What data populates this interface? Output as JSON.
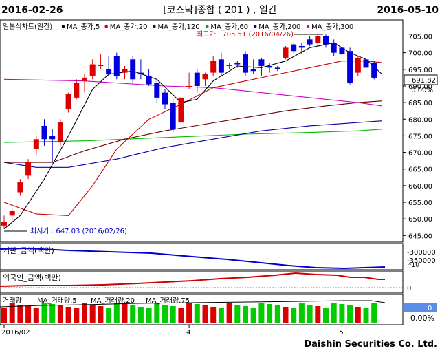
{
  "header": {
    "start_date": "2016-02-26",
    "title": "[코스닥]종합 ( 201 ) , 일간",
    "end_date": "2016-05-10"
  },
  "legend": {
    "chart_name": "일본식차트(일간)",
    "items": [
      {
        "label": "MA_종가,5",
        "color": "#000000"
      },
      {
        "label": "MA_종가,20",
        "color": "#cc0000"
      },
      {
        "label": "MA_종가,120",
        "color": "#660000"
      },
      {
        "label": "MA_종가,60",
        "color": "#00aa00"
      },
      {
        "label": "MA_종가,200",
        "color": "#0000aa"
      },
      {
        "label": "MA_종가,300",
        "color": "#cc00cc"
      }
    ]
  },
  "annotations": {
    "high": "최고가 : 705.51 (2016/04/26)",
    "low": "최저가 : 647.03 (2016/02/26)"
  },
  "price_axis": {
    "last_value": "691.82",
    "change": "0.00%"
  },
  "inst_panel": {
    "label": "기관_금액(백만)",
    "ticks": [
      "-300000",
      "-350000"
    ],
    "unit": "*10"
  },
  "foreign_panel": {
    "label": "외국인_금액(백만)",
    "tick": "0"
  },
  "volume_panel": {
    "label": "거래량",
    "ma5": "MA_거래량,5",
    "ma20": "MA_거래량,20",
    "ma75": "MA_거래량,75",
    "value": "0",
    "change": "0.00%"
  },
  "x_axis": {
    "labels": [
      {
        "text": "2016/02",
        "index": 0
      },
      {
        "text": "4",
        "index": 23
      },
      {
        "text": "5",
        "index": 42
      }
    ]
  },
  "footer": {
    "brand": "Daishin Securities Co. Ltd."
  },
  "chart_data": {
    "type": "candlestick",
    "ylim": [
      643,
      708
    ],
    "yticks": [
      645,
      650,
      655,
      660,
      665,
      670,
      675,
      680,
      685,
      690,
      695,
      700,
      705
    ],
    "candles": [
      {
        "o": 648.0,
        "h": 651.0,
        "l": 647.03,
        "c": 649.0
      },
      {
        "o": 651.0,
        "h": 653.0,
        "l": 649.0,
        "c": 652.5
      },
      {
        "o": 658.0,
        "h": 662.0,
        "l": 657.0,
        "c": 661.0
      },
      {
        "o": 663.0,
        "h": 668.0,
        "l": 662.0,
        "c": 667.0
      },
      {
        "o": 671.0,
        "h": 675.0,
        "l": 669.0,
        "c": 674.0
      },
      {
        "o": 678.0,
        "h": 680.0,
        "l": 672.0,
        "c": 674.0
      },
      {
        "o": 675.0,
        "h": 677.0,
        "l": 667.0,
        "c": 674.0
      },
      {
        "o": 673.0,
        "h": 680.0,
        "l": 672.0,
        "c": 679.0
      },
      {
        "o": 683.0,
        "h": 688.0,
        "l": 682.0,
        "c": 687.5
      },
      {
        "o": 686.5,
        "h": 692.0,
        "l": 686.0,
        "c": 691.0
      },
      {
        "o": 691.5,
        "h": 693.5,
        "l": 688.0,
        "c": 692.5
      },
      {
        "o": 693.0,
        "h": 698.0,
        "l": 692.0,
        "c": 696.5
      },
      {
        "o": 696.0,
        "h": 699.5,
        "l": 695.0,
        "c": 696.3
      },
      {
        "o": 695.0,
        "h": 699.0,
        "l": 693.0,
        "c": 693.5
      },
      {
        "o": 699.0,
        "h": 700.0,
        "l": 692.0,
        "c": 693.0
      },
      {
        "o": 694.0,
        "h": 696.0,
        "l": 692.0,
        "c": 695.0
      },
      {
        "o": 698.0,
        "h": 699.0,
        "l": 691.0,
        "c": 692.0
      },
      {
        "o": 694.0,
        "h": 698.0,
        "l": 692.0,
        "c": 693.5
      },
      {
        "o": 693.0,
        "h": 695.0,
        "l": 690.0,
        "c": 690.5
      },
      {
        "o": 691.0,
        "h": 692.0,
        "l": 685.0,
        "c": 686.5
      },
      {
        "o": 688.0,
        "h": 689.0,
        "l": 683.0,
        "c": 684.5
      },
      {
        "o": 685.0,
        "h": 686.0,
        "l": 676.0,
        "c": 677.0
      },
      {
        "o": 679.0,
        "h": 687.0,
        "l": 678.0,
        "c": 686.5
      },
      {
        "o": 690.0,
        "h": 694.0,
        "l": 689.0,
        "c": 690.0
      },
      {
        "o": 694.0,
        "h": 695.0,
        "l": 688.0,
        "c": 690.0
      },
      {
        "o": 692.0,
        "h": 694.0,
        "l": 690.0,
        "c": 693.5
      },
      {
        "o": 694.0,
        "h": 699.0,
        "l": 693.0,
        "c": 697.5
      },
      {
        "o": 698.0,
        "h": 700.0,
        "l": 693.0,
        "c": 694.0
      },
      {
        "o": 696.0,
        "h": 697.0,
        "l": 695.0,
        "c": 696.3
      },
      {
        "o": 697.0,
        "h": 697.5,
        "l": 695.5,
        "c": 696.5
      },
      {
        "o": 699.5,
        "h": 700.5,
        "l": 693.0,
        "c": 694.0
      },
      {
        "o": 695.0,
        "h": 698.0,
        "l": 693.5,
        "c": 694.5
      },
      {
        "o": 698.0,
        "h": 698.5,
        "l": 693.0,
        "c": 696.0
      },
      {
        "o": 696.0,
        "h": 697.0,
        "l": 694.0,
        "c": 695.5
      },
      {
        "o": 695.5,
        "h": 696.0,
        "l": 694.5,
        "c": 695.0
      },
      {
        "o": 698.5,
        "h": 702.0,
        "l": 698.0,
        "c": 701.5
      },
      {
        "o": 702.5,
        "h": 703.0,
        "l": 700.0,
        "c": 700.5
      },
      {
        "o": 702.0,
        "h": 703.0,
        "l": 699.5,
        "c": 701.5
      },
      {
        "o": 704.0,
        "h": 705.0,
        "l": 702.0,
        "c": 702.5
      },
      {
        "o": 703.0,
        "h": 705.51,
        "l": 702.0,
        "c": 705.0
      },
      {
        "o": 705.0,
        "h": 705.5,
        "l": 701.5,
        "c": 702.5
      },
      {
        "o": 703.0,
        "h": 704.0,
        "l": 699.0,
        "c": 700.0
      },
      {
        "o": 701.5,
        "h": 702.0,
        "l": 698.5,
        "c": 699.5
      },
      {
        "o": 700.5,
        "h": 701.5,
        "l": 690.5,
        "c": 691.0
      },
      {
        "o": 694.0,
        "h": 699.0,
        "l": 693.0,
        "c": 698.5
      },
      {
        "o": 698.0,
        "h": 698.5,
        "l": 693.5,
        "c": 695.5
      },
      {
        "o": 697.0,
        "h": 697.5,
        "l": 692.0,
        "c": 692.5
      }
    ],
    "ma5": [
      [
        0,
        647
      ],
      [
        2,
        651
      ],
      [
        5,
        662
      ],
      [
        8,
        675
      ],
      [
        11,
        689
      ],
      [
        13,
        693.5
      ],
      [
        16,
        694.5
      ],
      [
        19,
        692
      ],
      [
        22,
        685
      ],
      [
        24,
        686
      ],
      [
        26,
        691.5
      ],
      [
        29,
        696
      ],
      [
        32,
        695.5
      ],
      [
        35,
        697.5
      ],
      [
        38,
        701.5
      ],
      [
        41,
        703
      ],
      [
        43,
        700
      ],
      [
        45,
        698
      ],
      [
        47,
        693.5
      ]
    ],
    "ma20": [
      [
        0,
        655
      ],
      [
        4,
        651.5
      ],
      [
        8,
        651
      ],
      [
        11,
        660
      ],
      [
        14,
        671
      ],
      [
        18,
        680
      ],
      [
        22,
        684.5
      ],
      [
        26,
        689.5
      ],
      [
        30,
        691.5
      ],
      [
        34,
        693.5
      ],
      [
        38,
        695.5
      ],
      [
        42,
        697.5
      ],
      [
        45,
        697.5
      ],
      [
        47,
        697
      ]
    ],
    "ma120": [
      [
        0,
        667
      ],
      [
        6,
        667
      ],
      [
        10,
        670.5
      ],
      [
        15,
        674
      ],
      [
        20,
        676.5
      ],
      [
        25,
        678.5
      ],
      [
        30,
        680.5
      ],
      [
        35,
        682.5
      ],
      [
        40,
        684
      ],
      [
        44,
        685
      ],
      [
        47,
        685.5
      ]
    ],
    "ma60": [
      [
        0,
        673
      ],
      [
        10,
        673.5
      ],
      [
        20,
        674.5
      ],
      [
        30,
        675.5
      ],
      [
        38,
        676
      ],
      [
        44,
        676.5
      ],
      [
        47,
        677
      ]
    ],
    "ma200": [
      [
        0,
        667
      ],
      [
        4,
        665.5
      ],
      [
        8,
        665.5
      ],
      [
        14,
        668
      ],
      [
        20,
        671.5
      ],
      [
        26,
        674
      ],
      [
        32,
        676.5
      ],
      [
        38,
        678
      ],
      [
        44,
        679
      ],
      [
        47,
        679.5
      ]
    ],
    "ma300": [
      [
        0,
        692
      ],
      [
        10,
        691.5
      ],
      [
        20,
        690
      ],
      [
        26,
        689.5
      ],
      [
        32,
        688
      ],
      [
        38,
        686.5
      ],
      [
        44,
        685
      ],
      [
        47,
        684
      ]
    ]
  }
}
